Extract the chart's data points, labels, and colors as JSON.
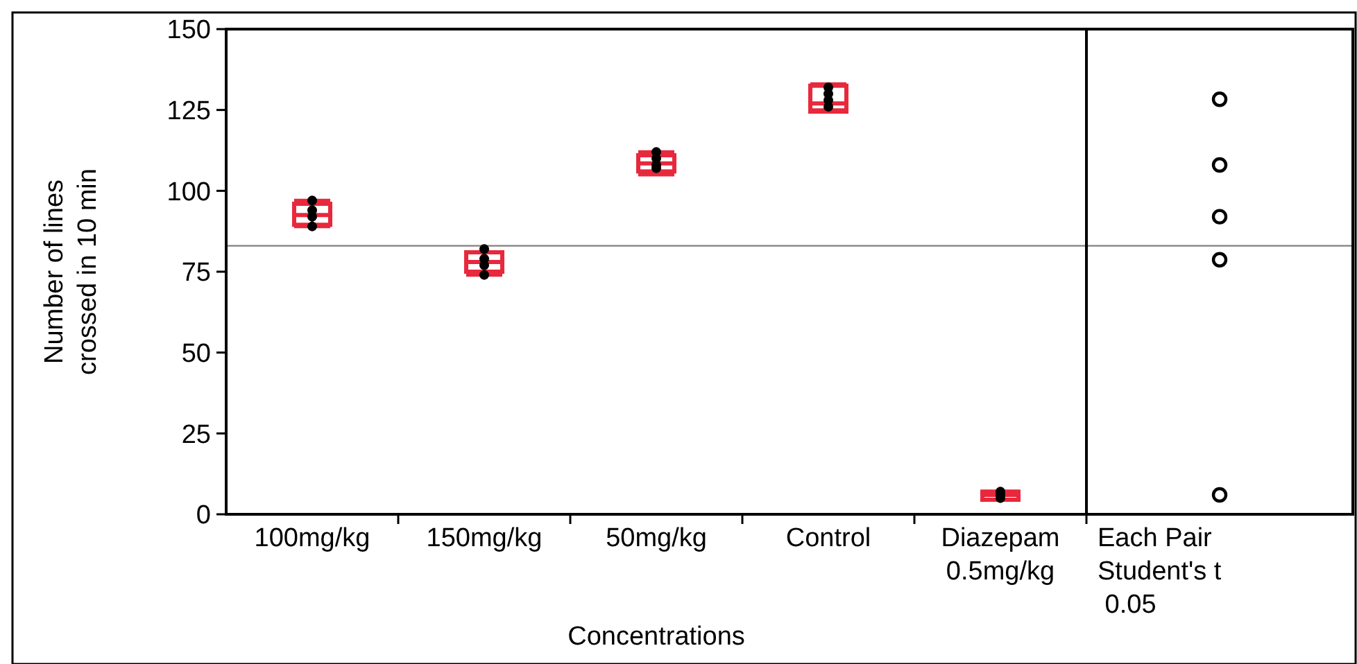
{
  "chart_data": {
    "type": "box",
    "xlabel": "Concentrations",
    "ylabel": "Number of lines\ncrossed in 10 min",
    "categories": [
      "100mg/kg",
      "150mg/kg",
      "50mg/kg",
      "Control",
      "Diazepam\n0.5mg/kg",
      "Each Pair\nStudent's t\n 0.05"
    ],
    "ylim": [
      0,
      150
    ],
    "yticks": [
      0,
      25,
      50,
      75,
      100,
      125,
      150
    ],
    "grid": false,
    "ref_lines": [
      {
        "axis": "y",
        "value": 83,
        "color": "#808080"
      }
    ],
    "series": [
      {
        "color": "#e8283c",
        "boxes": [
          {
            "low": 89,
            "q1": 89.5,
            "median": 92.5,
            "q3": 96,
            "high": 97
          },
          {
            "low": 74,
            "q1": 75,
            "median": 78,
            "q3": 81,
            "high": 81
          },
          {
            "low": 105,
            "q1": 106,
            "median": 108.5,
            "q3": 111,
            "high": 112
          },
          {
            "low": 125,
            "q1": 124.5,
            "median": 127,
            "q3": 132.5,
            "high": 133
          },
          {
            "low": 4.5,
            "q1": 4.5,
            "median": 6,
            "q3": 7,
            "high": 7
          },
          null
        ]
      },
      {
        "type": "scatter",
        "color": "#000000",
        "marker": "circle",
        "x": [
          "100mg/kg",
          "100mg/kg",
          "100mg/kg",
          "100mg/kg",
          "150mg/kg",
          "150mg/kg",
          "150mg/kg",
          "150mg/kg",
          "50mg/kg",
          "50mg/kg",
          "50mg/kg",
          "50mg/kg",
          "Control",
          "Control",
          "Control",
          "Control",
          "Diazepam\n0.5mg/kg",
          "Diazepam\n0.5mg/kg",
          "Diazepam\n0.5mg/kg"
        ],
        "values": [
          89,
          92,
          94,
          97,
          74,
          77,
          79,
          82,
          107,
          108,
          110,
          112,
          126,
          128,
          130,
          132,
          5,
          6,
          7
        ]
      },
      {
        "type": "scatter",
        "color": "#000000",
        "marker": "circle",
        "x": [
          "Each Pair\nStudent's t\n 0.05",
          "Each Pair\nStudent's t\n 0.05",
          "Each Pair\nStudent's t\n 0.05",
          "Each Pair\nStudent's t\n 0.05",
          "Each Pair\nStudent's t\n 0.05"
        ],
        "values": [
          128.3,
          108,
          92,
          78.7,
          6
        ]
      }
    ]
  }
}
